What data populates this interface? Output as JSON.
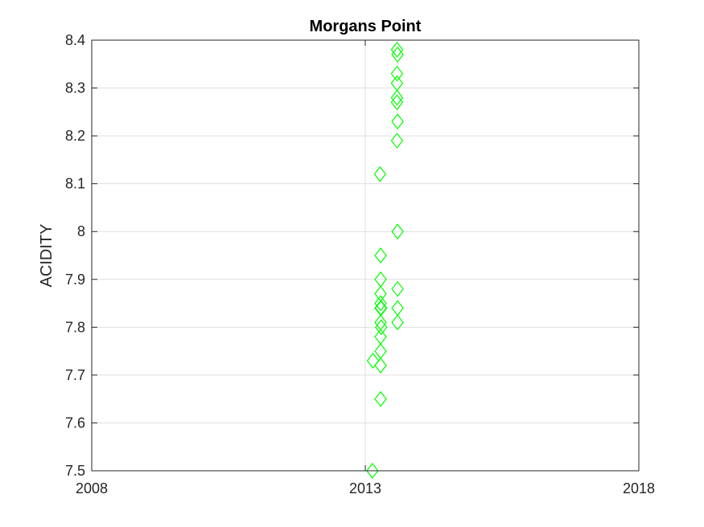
{
  "chart_data": {
    "type": "scatter",
    "title": "Morgans Point",
    "xlabel": "",
    "ylabel": "ACIDITY",
    "xlim": [
      2008,
      2018
    ],
    "ylim": [
      7.5,
      8.4
    ],
    "x_ticks": [
      "2008",
      "2013",
      "2018"
    ],
    "y_ticks": [
      "7.5",
      "7.6",
      "7.7",
      "7.8",
      "7.9",
      "8",
      "8.1",
      "8.2",
      "8.3",
      "8.4"
    ],
    "grid": true,
    "marker": "diamond",
    "color": "#00ff00",
    "points": [
      {
        "x": 2013.13,
        "y": 7.5
      },
      {
        "x": 2013.14,
        "y": 7.73
      },
      {
        "x": 2013.27,
        "y": 8.12
      },
      {
        "x": 2013.28,
        "y": 7.95
      },
      {
        "x": 2013.28,
        "y": 7.9
      },
      {
        "x": 2013.28,
        "y": 7.87
      },
      {
        "x": 2013.28,
        "y": 7.85
      },
      {
        "x": 2013.28,
        "y": 7.84
      },
      {
        "x": 2013.29,
        "y": 7.84
      },
      {
        "x": 2013.28,
        "y": 7.81
      },
      {
        "x": 2013.29,
        "y": 7.8
      },
      {
        "x": 2013.28,
        "y": 7.78
      },
      {
        "x": 2013.28,
        "y": 7.75
      },
      {
        "x": 2013.28,
        "y": 7.72
      },
      {
        "x": 2013.28,
        "y": 7.65
      },
      {
        "x": 2013.58,
        "y": 8.38
      },
      {
        "x": 2013.59,
        "y": 8.37
      },
      {
        "x": 2013.58,
        "y": 8.33
      },
      {
        "x": 2013.58,
        "y": 8.31
      },
      {
        "x": 2013.58,
        "y": 8.28
      },
      {
        "x": 2013.58,
        "y": 8.27
      },
      {
        "x": 2013.59,
        "y": 8.23
      },
      {
        "x": 2013.58,
        "y": 8.19
      },
      {
        "x": 2013.59,
        "y": 8.0
      },
      {
        "x": 2013.59,
        "y": 7.88
      },
      {
        "x": 2013.59,
        "y": 7.84
      },
      {
        "x": 2013.59,
        "y": 7.81
      }
    ]
  }
}
